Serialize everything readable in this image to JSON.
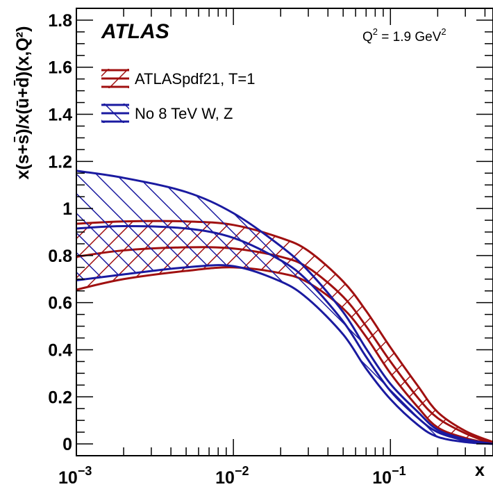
{
  "chart_data": {
    "type": "area",
    "x_scale": "log",
    "xlim": [
      0.001,
      0.45
    ],
    "ylim": [
      -0.05,
      1.85
    ],
    "xlabel": "x",
    "ylabel": "x(s+s̄)/x(ū+d̄)(x,Q²)",
    "experiment_label": "ATLAS",
    "q2_label": {
      "main": "Q",
      "sup1": "2",
      "mid": " = 1.9 GeV",
      "sup2": "2"
    },
    "x_ticks": [
      {
        "value": 0.001,
        "base": "10",
        "exp": "−3"
      },
      {
        "value": 0.01,
        "base": "10",
        "exp": "−2"
      },
      {
        "value": 0.1,
        "base": "10",
        "exp": "−1"
      }
    ],
    "y_ticks": [
      {
        "value": 0,
        "label": "0"
      },
      {
        "value": 0.2,
        "label": "0.2"
      },
      {
        "value": 0.4,
        "label": "0.4"
      },
      {
        "value": 0.6,
        "label": "0.6"
      },
      {
        "value": 0.8,
        "label": "0.8"
      },
      {
        "value": 1.0,
        "label": "1"
      },
      {
        "value": 1.2,
        "label": "1.2"
      },
      {
        "value": 1.4,
        "label": "1.4"
      },
      {
        "value": 1.6,
        "label": "1.6"
      },
      {
        "value": 1.8,
        "label": "1.8"
      }
    ],
    "x": [
      0.001,
      0.002,
      0.005,
      0.01,
      0.02,
      0.03,
      0.05,
      0.07,
      0.1,
      0.15,
      0.2,
      0.3,
      0.45
    ],
    "series": [
      {
        "name": "ATLASpdf21, T=1",
        "color": "#a01010",
        "hatch": "lines",
        "central": [
          0.795,
          0.822,
          0.835,
          0.83,
          0.795,
          0.748,
          0.625,
          0.5,
          0.35,
          0.195,
          0.11,
          0.045,
          0.0
        ],
        "upper": [
          0.935,
          0.945,
          0.945,
          0.93,
          0.875,
          0.82,
          0.69,
          0.565,
          0.41,
          0.245,
          0.135,
          0.055,
          0.008
        ],
        "lower": [
          0.655,
          0.7,
          0.735,
          0.75,
          0.725,
          0.685,
          0.575,
          0.455,
          0.3,
          0.155,
          0.07,
          0.025,
          0.0
        ]
      },
      {
        "name": "No 8 TeV W, Z",
        "color": "#1a1aa0",
        "hatch": "lines",
        "central": [
          0.915,
          0.925,
          0.915,
          0.875,
          0.78,
          0.69,
          0.52,
          0.37,
          0.225,
          0.11,
          0.05,
          0.015,
          0.0
        ],
        "upper": [
          1.16,
          1.13,
          1.07,
          0.98,
          0.84,
          0.735,
          0.56,
          0.405,
          0.255,
          0.135,
          0.06,
          0.02,
          0.0
        ],
        "lower": [
          0.695,
          0.72,
          0.75,
          0.755,
          0.69,
          0.615,
          0.465,
          0.32,
          0.19,
          0.08,
          0.03,
          0.008,
          0.0
        ]
      }
    ],
    "legend_position": "top-left",
    "grid": false
  }
}
